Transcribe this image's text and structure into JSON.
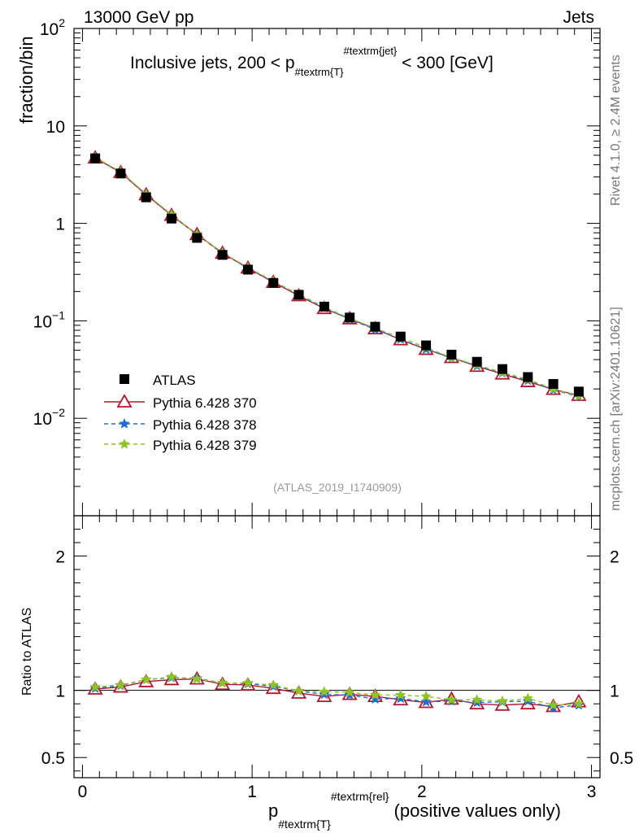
{
  "header": {
    "energy_label": "13000 GeV pp",
    "category_label": "Jets"
  },
  "side_labels": {
    "rivet": "Rivet 4.1.0, ≥ 2.4M events",
    "mcplots": "mcplots.cern.ch [arXiv:2401.10621]"
  },
  "analysis_id": "(ATLAS_2019_I1740909)",
  "chart_data": {
    "type": "scatter",
    "title": "Inclusive jets, 200 < p_{#textrm{T}}^{#textrm{jet}} < 300 [GeV]",
    "title_parts": {
      "pre": "Inclusive jets, 200 < p",
      "sub": "#textrm{T}",
      "sup": "#textrm{jet}",
      "post": " < 300 [GeV]"
    },
    "xlabel": "p_{#textrm{T}}^{#textrm{rel}} (positive values only)",
    "xlabel_parts": {
      "main": "p",
      "sub": "#textrm{T}",
      "sup": "#textrm{rel}",
      "post": " (positive values only)"
    },
    "ylabel": "fraction/bin",
    "ratio_ylabel": "Ratio to ATLAS",
    "xlim": [
      -0.05,
      3.05
    ],
    "ylim": [
      0.001,
      100
    ],
    "ratio_ylim": [
      0.35,
      2.3
    ],
    "x_ticks": [
      "0",
      "1",
      "2",
      "3"
    ],
    "y_ticks": [
      "10^-2",
      "10^-1",
      "1",
      "10",
      "10^2"
    ],
    "ratio_ticks": [
      "0.5",
      "1",
      "2"
    ],
    "x": [
      0.075,
      0.225,
      0.375,
      0.525,
      0.675,
      0.825,
      0.975,
      1.125,
      1.275,
      1.425,
      1.575,
      1.725,
      1.875,
      2.025,
      2.175,
      2.325,
      2.475,
      2.625,
      2.775,
      2.925
    ],
    "series": [
      {
        "name": "ATLAS",
        "color": "#000000",
        "marker": "square",
        "line": "none",
        "values": [
          4.65,
          3.25,
          1.85,
          1.12,
          0.71,
          0.475,
          0.335,
          0.245,
          0.185,
          0.14,
          0.108,
          0.087,
          0.069,
          0.056,
          0.045,
          0.038,
          0.032,
          0.0265,
          0.0225,
          0.0188
        ]
      },
      {
        "name": "Pythia 6.428 370",
        "color": "#b0182f",
        "marker": "triangle",
        "line": "solid",
        "values": [
          4.7,
          3.33,
          1.97,
          1.21,
          0.77,
          0.495,
          0.348,
          0.249,
          0.181,
          0.134,
          0.105,
          0.083,
          0.064,
          0.051,
          0.042,
          0.0342,
          0.0285,
          0.0238,
          0.0198,
          0.0172
        ]
      },
      {
        "name": "Pythia 6.428 378",
        "color": "#1e6ed6",
        "marker": "star",
        "line": "dashed",
        "values": [
          4.72,
          3.36,
          2.0,
          1.225,
          0.775,
          0.5,
          0.353,
          0.253,
          0.184,
          0.136,
          0.104,
          0.0815,
          0.0648,
          0.0512,
          0.0414,
          0.0345,
          0.0292,
          0.0244,
          0.0196,
          0.0167
        ]
      },
      {
        "name": "Pythia 6.428 379",
        "color": "#8fc322",
        "marker": "star",
        "line": "dashed",
        "values": [
          4.76,
          3.38,
          2.0,
          1.23,
          0.77,
          0.5,
          0.353,
          0.255,
          0.187,
          0.139,
          0.106,
          0.084,
          0.067,
          0.0534,
          0.0418,
          0.0353,
          0.0295,
          0.0251,
          0.02,
          0.0169
        ]
      }
    ],
    "ratios": [
      [
        1.01,
        1.025,
        1.065,
        1.08,
        1.085,
        1.045,
        1.04,
        1.015,
        0.98,
        0.955,
        0.97,
        0.955,
        0.93,
        0.91,
        0.935,
        0.9,
        0.89,
        0.9,
        0.88,
        0.915
      ],
      [
        1.015,
        1.035,
        1.08,
        1.095,
        1.09,
        1.055,
        1.05,
        1.03,
        0.995,
        0.97,
        0.965,
        0.935,
        0.94,
        0.915,
        0.92,
        0.91,
        0.915,
        0.92,
        0.87,
        0.89
      ],
      [
        1.025,
        1.04,
        1.08,
        1.1,
        1.085,
        1.055,
        1.055,
        1.04,
        0.995,
        0.99,
        0.985,
        0.965,
        0.965,
        0.955,
        0.93,
        0.93,
        0.92,
        0.94,
        0.89,
        0.9
      ]
    ]
  }
}
